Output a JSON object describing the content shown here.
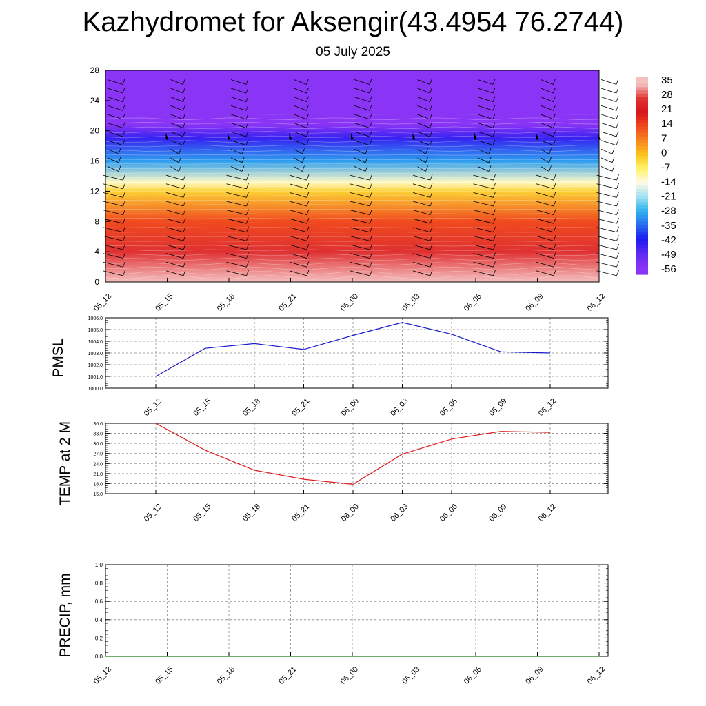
{
  "title": "Kazhydromet for Aksengir(43.4954 76.2744)",
  "subtitle": "05 July 2025",
  "chart_data": [
    {
      "type": "heatmap",
      "name": "vertical cross-section",
      "x_categories": [
        "05_12",
        "05_15",
        "05_18",
        "05_21",
        "06_00",
        "06_03",
        "06_06",
        "06_09",
        "06_12"
      ],
      "y_ticks": [
        "0",
        "4",
        "8",
        "12",
        "16",
        "20",
        "24",
        "28"
      ],
      "ylim": [
        0,
        28
      ],
      "colorbar_labels": [
        "35",
        "28",
        "21",
        "14",
        "7",
        "0",
        "-7",
        "-14",
        "-21",
        "-28",
        "-35",
        "-42",
        "-49",
        "-56"
      ],
      "colorbar_colors": [
        "#f5c0c0",
        "#e03535",
        "#d8141c",
        "#f04a1e",
        "#f7861e",
        "#fbc31e",
        "#fff46a",
        "#fffbe8",
        "#9fe0f5",
        "#2eb3ee",
        "#2a6bf0",
        "#1c1cf0",
        "#5b2af2",
        "#8a34f5"
      ],
      "temperature_profile": [
        {
          "level": 0,
          "value": 35
        },
        {
          "level": 4,
          "value": 27
        },
        {
          "level": 8,
          "value": 14
        },
        {
          "level": 12,
          "value": -2
        },
        {
          "level": 13.2,
          "value": -12
        },
        {
          "level": 16,
          "value": -30
        },
        {
          "level": 19,
          "value": -45
        },
        {
          "level": 20.8,
          "value": -56
        },
        {
          "level": 22.5,
          "value": -58
        }
      ]
    },
    {
      "type": "line",
      "name": "PMSL",
      "ylabel": "PMSL",
      "categories": [
        "05_12",
        "05_15",
        "05_18",
        "05_21",
        "06_00",
        "06_03",
        "06_06",
        "06_09",
        "06_12"
      ],
      "values": [
        1001.0,
        1003.4,
        1003.8,
        1003.3,
        1004.5,
        1005.6,
        1004.6,
        1003.1,
        1003.0
      ],
      "ylim": [
        1000.0,
        1006.0
      ],
      "yticks": [
        "1000.0",
        "1001.0",
        "1002.0",
        "1003.0",
        "1004.0",
        "1005.0",
        "1006.0"
      ],
      "color": "#1a1acc",
      "grid": true
    },
    {
      "type": "line",
      "name": "TEMP at 2 M",
      "ylabel": "TEMP at 2 M",
      "categories": [
        "05_12",
        "05_15",
        "05_18",
        "05_21",
        "06_00",
        "06_03",
        "06_06",
        "06_09",
        "06_12"
      ],
      "values": [
        36.0,
        28.0,
        22.0,
        19.3,
        17.8,
        26.8,
        31.3,
        33.6,
        33.3
      ],
      "ylim": [
        15.0,
        36.0
      ],
      "yticks": [
        "15.0",
        "18.0",
        "21.0",
        "24.0",
        "27.0",
        "30.0",
        "33.0",
        "36.0"
      ],
      "color": "#e01a1a",
      "grid": true
    },
    {
      "type": "line",
      "name": "PRECIP, mm",
      "ylabel": "PRECIP, mm",
      "categories": [
        "05_12",
        "05_15",
        "05_18",
        "05_21",
        "06_00",
        "06_03",
        "06_06",
        "06_09",
        "06_12"
      ],
      "values": [
        0,
        0,
        0,
        0,
        0,
        0,
        0,
        0,
        0
      ],
      "ylim": [
        0.0,
        1.0
      ],
      "yticks": [
        "0.0",
        "0.2",
        "0.4",
        "0.6",
        "0.8",
        "1.0"
      ],
      "color": "#1a7a1a",
      "grid": true
    }
  ]
}
